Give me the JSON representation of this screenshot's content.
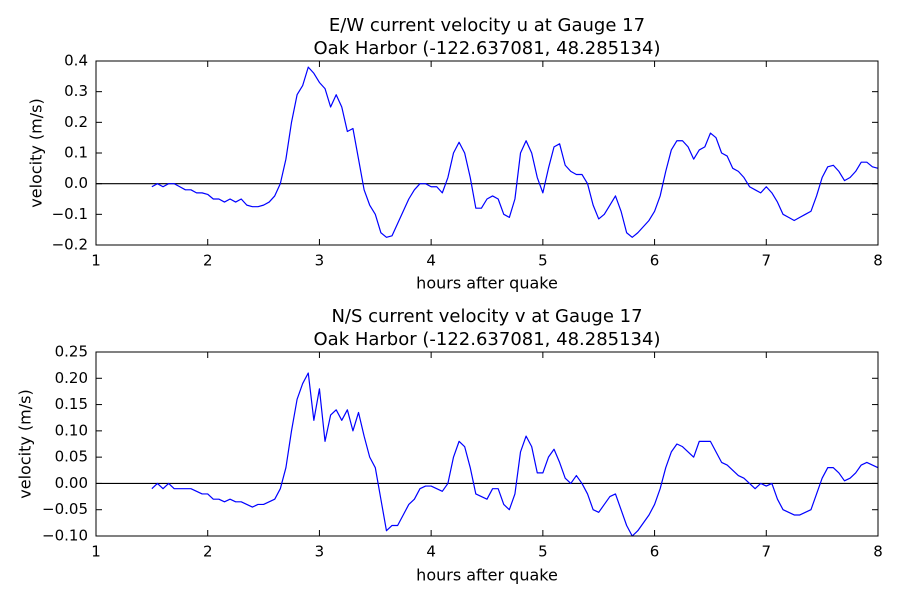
{
  "chart_data": [
    {
      "type": "line",
      "title": "E/W current velocity u at Gauge 17",
      "subtitle": "Oak Harbor  (-122.637081, 48.285134)",
      "xlabel": "hours after quake",
      "ylabel": "velocity (m/s)",
      "color": "#0000ff",
      "hline": 0,
      "hline_color": "#000000",
      "xlim": [
        1,
        8
      ],
      "ylim": [
        -0.2,
        0.4
      ],
      "xticks": [
        1,
        2,
        3,
        4,
        5,
        6,
        7,
        8
      ],
      "yticks": [
        {
          "value": -0.2,
          "label": "−0.2"
        },
        {
          "value": -0.1,
          "label": "−0.1"
        },
        {
          "value": 0,
          "label": "0.0"
        },
        0.1,
        0.2,
        0.3,
        0.4
      ],
      "x": [
        1.5,
        1.55,
        1.6,
        1.65,
        1.7,
        1.75,
        1.8,
        1.85,
        1.9,
        1.95,
        2.0,
        2.05,
        2.1,
        2.15,
        2.2,
        2.25,
        2.3,
        2.35,
        2.4,
        2.45,
        2.5,
        2.55,
        2.6,
        2.65,
        2.7,
        2.75,
        2.8,
        2.85,
        2.9,
        2.95,
        3.0,
        3.05,
        3.1,
        3.15,
        3.2,
        3.25,
        3.3,
        3.35,
        3.4,
        3.45,
        3.5,
        3.55,
        3.6,
        3.65,
        3.7,
        3.75,
        3.8,
        3.85,
        3.9,
        3.95,
        4.0,
        4.05,
        4.1,
        4.15,
        4.2,
        4.25,
        4.3,
        4.35,
        4.4,
        4.45,
        4.5,
        4.55,
        4.6,
        4.65,
        4.7,
        4.75,
        4.8,
        4.85,
        4.9,
        4.95,
        5.0,
        5.05,
        5.1,
        5.15,
        5.2,
        5.25,
        5.3,
        5.35,
        5.4,
        5.45,
        5.5,
        5.55,
        5.6,
        5.65,
        5.7,
        5.75,
        5.8,
        5.85,
        5.9,
        5.95,
        6.0,
        6.05,
        6.1,
        6.15,
        6.2,
        6.25,
        6.3,
        6.35,
        6.4,
        6.45,
        6.5,
        6.55,
        6.6,
        6.65,
        6.7,
        6.75,
        6.8,
        6.85,
        6.9,
        6.95,
        7.0,
        7.05,
        7.1,
        7.15,
        7.2,
        7.25,
        7.3,
        7.35,
        7.4,
        7.45,
        7.5,
        7.55,
        7.6,
        7.65,
        7.7,
        7.75,
        7.8,
        7.85,
        7.9,
        7.95,
        8.0
      ],
      "values": [
        -0.01,
        0,
        -0.01,
        0,
        0,
        -0.01,
        -0.02,
        -0.02,
        -0.03,
        -0.03,
        -0.035,
        -0.05,
        -0.05,
        -0.06,
        -0.05,
        -0.06,
        -0.05,
        -0.07,
        -0.075,
        -0.075,
        -0.07,
        -0.06,
        -0.04,
        0,
        0.08,
        0.2,
        0.29,
        0.32,
        0.38,
        0.36,
        0.33,
        0.31,
        0.25,
        0.29,
        0.25,
        0.17,
        0.18,
        0.08,
        -0.02,
        -0.07,
        -0.1,
        -0.16,
        -0.175,
        -0.17,
        -0.13,
        -0.09,
        -0.05,
        -0.02,
        0,
        0,
        -0.01,
        -0.01,
        -0.03,
        0.02,
        0.1,
        0.135,
        0.1,
        0.02,
        -0.08,
        -0.08,
        -0.05,
        -0.04,
        -0.05,
        -0.1,
        -0.11,
        -0.05,
        0.1,
        0.14,
        0.1,
        0.02,
        -0.03,
        0.05,
        0.12,
        0.13,
        0.06,
        0.04,
        0.03,
        0.03,
        0,
        -0.07,
        -0.115,
        -0.1,
        -0.07,
        -0.04,
        -0.09,
        -0.16,
        -0.175,
        -0.16,
        -0.14,
        -0.12,
        -0.09,
        -0.04,
        0.04,
        0.11,
        0.14,
        0.14,
        0.12,
        0.08,
        0.11,
        0.12,
        0.165,
        0.15,
        0.1,
        0.09,
        0.05,
        0.04,
        0.02,
        -0.01,
        -0.02,
        -0.03,
        -0.01,
        -0.03,
        -0.06,
        -0.1,
        -0.11,
        -0.12,
        -0.11,
        -0.1,
        -0.09,
        -0.04,
        0.02,
        0.055,
        0.06,
        0.04,
        0.01,
        0.02,
        0.04,
        0.07,
        0.07,
        0.055,
        0.05
      ]
    },
    {
      "type": "line",
      "title": "N/S current velocity v at Gauge 17",
      "subtitle": "Oak Harbor  (-122.637081, 48.285134)",
      "xlabel": "hours after quake",
      "ylabel": "velocity (m/s)",
      "color": "#0000ff",
      "hline": 0,
      "hline_color": "#000000",
      "xlim": [
        1,
        8
      ],
      "ylim": [
        -0.1,
        0.25
      ],
      "xticks": [
        1,
        2,
        3,
        4,
        5,
        6,
        7,
        8
      ],
      "yticks": [
        {
          "value": -0.1,
          "label": "−0.10"
        },
        {
          "value": -0.05,
          "label": "−0.05"
        },
        {
          "value": 0,
          "label": "0.00"
        },
        0.05,
        {
          "value": 0.1,
          "label": "0.10"
        },
        0.15,
        {
          "value": 0.2,
          "label": "0.20"
        },
        0.25
      ],
      "x": [
        1.5,
        1.55,
        1.6,
        1.65,
        1.7,
        1.75,
        1.8,
        1.85,
        1.9,
        1.95,
        2.0,
        2.05,
        2.1,
        2.15,
        2.2,
        2.25,
        2.3,
        2.35,
        2.4,
        2.45,
        2.5,
        2.55,
        2.6,
        2.65,
        2.7,
        2.75,
        2.8,
        2.85,
        2.9,
        2.95,
        3.0,
        3.05,
        3.1,
        3.15,
        3.2,
        3.25,
        3.3,
        3.35,
        3.4,
        3.45,
        3.5,
        3.55,
        3.6,
        3.65,
        3.7,
        3.75,
        3.8,
        3.85,
        3.9,
        3.95,
        4.0,
        4.05,
        4.1,
        4.15,
        4.2,
        4.25,
        4.3,
        4.35,
        4.4,
        4.45,
        4.5,
        4.55,
        4.6,
        4.65,
        4.7,
        4.75,
        4.8,
        4.85,
        4.9,
        4.95,
        5.0,
        5.05,
        5.1,
        5.15,
        5.2,
        5.25,
        5.3,
        5.35,
        5.4,
        5.45,
        5.5,
        5.55,
        5.6,
        5.65,
        5.7,
        5.75,
        5.8,
        5.85,
        5.9,
        5.95,
        6.0,
        6.05,
        6.1,
        6.15,
        6.2,
        6.25,
        6.3,
        6.35,
        6.4,
        6.45,
        6.5,
        6.55,
        6.6,
        6.65,
        6.7,
        6.75,
        6.8,
        6.85,
        6.9,
        6.95,
        7.0,
        7.05,
        7.1,
        7.15,
        7.2,
        7.25,
        7.3,
        7.35,
        7.4,
        7.45,
        7.5,
        7.55,
        7.6,
        7.65,
        7.7,
        7.75,
        7.8,
        7.85,
        7.9,
        7.95,
        8.0
      ],
      "values": [
        -0.01,
        0,
        -0.01,
        0,
        -0.01,
        -0.01,
        -0.01,
        -0.01,
        -0.015,
        -0.02,
        -0.02,
        -0.03,
        -0.03,
        -0.035,
        -0.03,
        -0.035,
        -0.035,
        -0.04,
        -0.045,
        -0.04,
        -0.04,
        -0.035,
        -0.03,
        -0.01,
        0.03,
        0.1,
        0.16,
        0.19,
        0.21,
        0.12,
        0.18,
        0.08,
        0.13,
        0.14,
        0.12,
        0.14,
        0.1,
        0.135,
        0.09,
        0.05,
        0.03,
        -0.03,
        -0.09,
        -0.08,
        -0.08,
        -0.06,
        -0.04,
        -0.03,
        -0.01,
        -0.005,
        -0.005,
        -0.01,
        -0.015,
        0,
        0.05,
        0.08,
        0.07,
        0.03,
        -0.02,
        -0.025,
        -0.03,
        -0.01,
        -0.01,
        -0.04,
        -0.05,
        -0.02,
        0.06,
        0.09,
        0.07,
        0.02,
        0.02,
        0.05,
        0.065,
        0.04,
        0.01,
        0,
        0.015,
        0,
        -0.02,
        -0.05,
        -0.055,
        -0.04,
        -0.025,
        -0.02,
        -0.05,
        -0.08,
        -0.1,
        -0.09,
        -0.075,
        -0.06,
        -0.04,
        -0.01,
        0.03,
        0.06,
        0.075,
        0.07,
        0.06,
        0.05,
        0.08,
        0.08,
        0.08,
        0.06,
        0.04,
        0.035,
        0.025,
        0.015,
        0.01,
        0,
        -0.01,
        0,
        -0.005,
        0,
        -0.03,
        -0.05,
        -0.055,
        -0.06,
        -0.06,
        -0.055,
        -0.05,
        -0.02,
        0.01,
        0.03,
        0.03,
        0.02,
        0.005,
        0.01,
        0.02,
        0.035,
        0.04,
        0.035,
        0.03
      ]
    }
  ]
}
